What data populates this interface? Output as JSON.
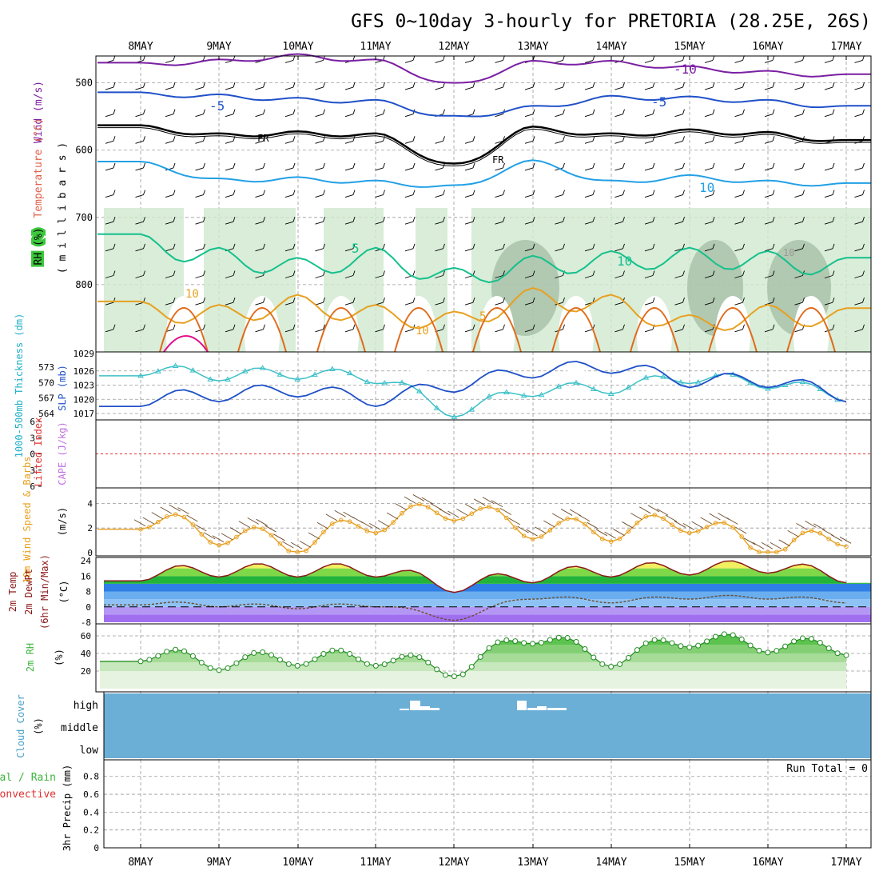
{
  "title": "GFS 0~10day 3-hourly for PRETORIA (28.25E, 26S)",
  "dates": [
    "8MAY",
    "9MAY",
    "10MAY",
    "11MAY",
    "12MAY",
    "13MAY",
    "14MAY",
    "15MAY",
    "16MAY",
    "17MAY"
  ],
  "colors": {
    "grid": "#999999",
    "frame": "#000000",
    "cloud_bg": "#6baed6",
    "purple": "#7a1fa2",
    "blue": "#1f50c8",
    "lightblue": "#22a0e6",
    "teal": "#14c08c",
    "orange": "#e8a020",
    "darkorange": "#e06a1a",
    "magenta": "#e0108a",
    "rh_shade": "#cfe9cf"
  },
  "panels": {
    "upper": {
      "ylabel_wind": "Wind (m/s)",
      "ylabel_temp": "Temperature (°C)",
      "ylabel_rh": "RH (%)",
      "ylabel_mb": "( m i l l i b a r s )",
      "ticks": [
        "500",
        "600",
        "700",
        "800"
      ],
      "contour_labels": [
        "-10",
        "-5",
        "-5",
        "FR",
        "FR",
        "10",
        "5",
        "10",
        "10",
        "5",
        "10",
        "10"
      ]
    },
    "thickness": {
      "ylabel_thick": "1000-500mb Thickness (dm)",
      "ylabel_slp": "SLP (mb)",
      "left_ticks": [
        "573",
        "570",
        "567",
        "564"
      ],
      "right_ticks": [
        "1026",
        "1023",
        "1020",
        "1017"
      ],
      "top_tick": "1029"
    },
    "cape": {
      "ylabel_li": "Lifted Index",
      "ylabel_cape": "CAPE (J/kg)",
      "ticks": [
        "6",
        "3",
        "0",
        "3",
        "6"
      ]
    },
    "wind10": {
      "ylabel": "10m Wind Speed & Barbs",
      "units": "(m/s)",
      "ticks": [
        "4",
        "2",
        "0"
      ]
    },
    "temp2m": {
      "ylabel_a": "2m Temp",
      "ylabel_b": "2m DewPt",
      "ylabel_c": "(6hr Min/Max)",
      "units": "(°C)",
      "ticks": [
        "24",
        "16",
        "8",
        "0",
        "-8"
      ]
    },
    "rh2m": {
      "ylabel": "2m RH",
      "units": "(%)",
      "ticks": [
        "60",
        "40",
        "20"
      ]
    },
    "cloud": {
      "ylabel": "Cloud Cover",
      "units": "(%)",
      "levels": [
        "high",
        "middle",
        "low"
      ]
    },
    "precip": {
      "ylabel_a": "Total / Rain",
      "ylabel_b": "Convective",
      "ylabel_c": "3hr Precip (mm)",
      "ticks": [
        "0.8",
        "0.6",
        "0.4",
        "0.2",
        "0"
      ],
      "run_total": "Run Total = 0"
    }
  },
  "chart_data": [
    {
      "type": "line",
      "panel": "upper-air time-height cross section",
      "x": [
        "8MAY",
        "9MAY",
        "10MAY",
        "11MAY",
        "12MAY",
        "13MAY",
        "14MAY",
        "15MAY",
        "16MAY",
        "17MAY"
      ],
      "ylabel": "( m i l l i b a r s )",
      "ylim": [
        460,
        900
      ],
      "series": [
        {
          "name": "-10",
          "values": [
            473,
            468,
            460,
            468,
            503,
            470,
            470,
            478,
            485,
            490
          ]
        },
        {
          "name": "-5",
          "values": [
            517,
            520,
            525,
            528,
            552,
            537,
            522,
            523,
            528,
            537
          ]
        },
        {
          "name": "FR",
          "values": [
            566,
            578,
            575,
            578,
            623,
            568,
            578,
            572,
            576,
            588
          ]
        },
        {
          "name": "-5",
          "values": [
            620,
            645,
            643,
            648,
            655,
            618,
            648,
            640,
            648,
            652
          ]
        },
        {
          "name": "10",
          "values": [
            740,
            760,
            775,
            760,
            790,
            772,
            765,
            760,
            765,
            775
          ]
        },
        {
          "name": "5",
          "values": [
            840,
            845,
            830,
            845,
            855,
            820,
            830,
            860,
            845,
            850
          ]
        }
      ]
    },
    {
      "type": "line",
      "panel": "thickness & SLP",
      "x": [
        "8MAY",
        "9MAY",
        "10MAY",
        "11MAY",
        "12MAY",
        "13MAY",
        "14MAY",
        "15MAY",
        "16MAY",
        "17MAY"
      ],
      "series": [
        {
          "name": "1000-500mb Thickness (dm)",
          "values": [
            572.5,
            571.5,
            571.8,
            571.0,
            564.5,
            568.5,
            569.0,
            571.0,
            570.0,
            567.5
          ]
        },
        {
          "name": "SLP (mb)",
          "values": [
            1020,
            1021,
            1022,
            1020,
            1023,
            1026,
            1027,
            1024,
            1024,
            1021
          ]
        }
      ]
    },
    {
      "type": "line",
      "panel": "10m wind speed",
      "x": [
        "8MAY",
        "9MAY",
        "10MAY",
        "11MAY",
        "12MAY",
        "13MAY",
        "14MAY",
        "15MAY",
        "16MAY",
        "17MAY"
      ],
      "ylabel": "(m/s)",
      "ylim": [
        0,
        5
      ],
      "series": [
        {
          "name": "10m Wind Speed",
          "values": [
            2.8,
            1.5,
            0.8,
            2.5,
            3.5,
            2.0,
            1.8,
            2.5,
            0.3,
            1.4
          ]
        }
      ]
    },
    {
      "type": "area",
      "panel": "2m temperature & dewpoint",
      "x": [
        "8MAY",
        "9MAY",
        "10MAY",
        "11MAY",
        "12MAY",
        "13MAY",
        "14MAY",
        "15MAY",
        "16MAY",
        "17MAY"
      ],
      "ylabel": "(°C)",
      "ylim": [
        -8,
        24
      ],
      "series": [
        {
          "name": "2m Temp",
          "values": [
            17,
            19,
            19,
            19,
            11,
            16,
            19,
            20,
            21,
            16
          ]
        },
        {
          "name": "2m DewPt",
          "values": [
            2,
            1,
            0,
            1,
            -6,
            5,
            3,
            5,
            5,
            3
          ]
        }
      ]
    },
    {
      "type": "area",
      "panel": "2m RH",
      "x": [
        "8MAY",
        "9MAY",
        "10MAY",
        "11MAY",
        "12MAY",
        "13MAY",
        "14MAY",
        "15MAY",
        "16MAY",
        "17MAY"
      ],
      "ylabel": "(%)",
      "ylim": [
        0,
        70
      ],
      "series": [
        {
          "name": "2m RH",
          "values": [
            40,
            30,
            35,
            35,
            22,
            60,
            34,
            56,
            50,
            47
          ]
        }
      ]
    }
  ]
}
